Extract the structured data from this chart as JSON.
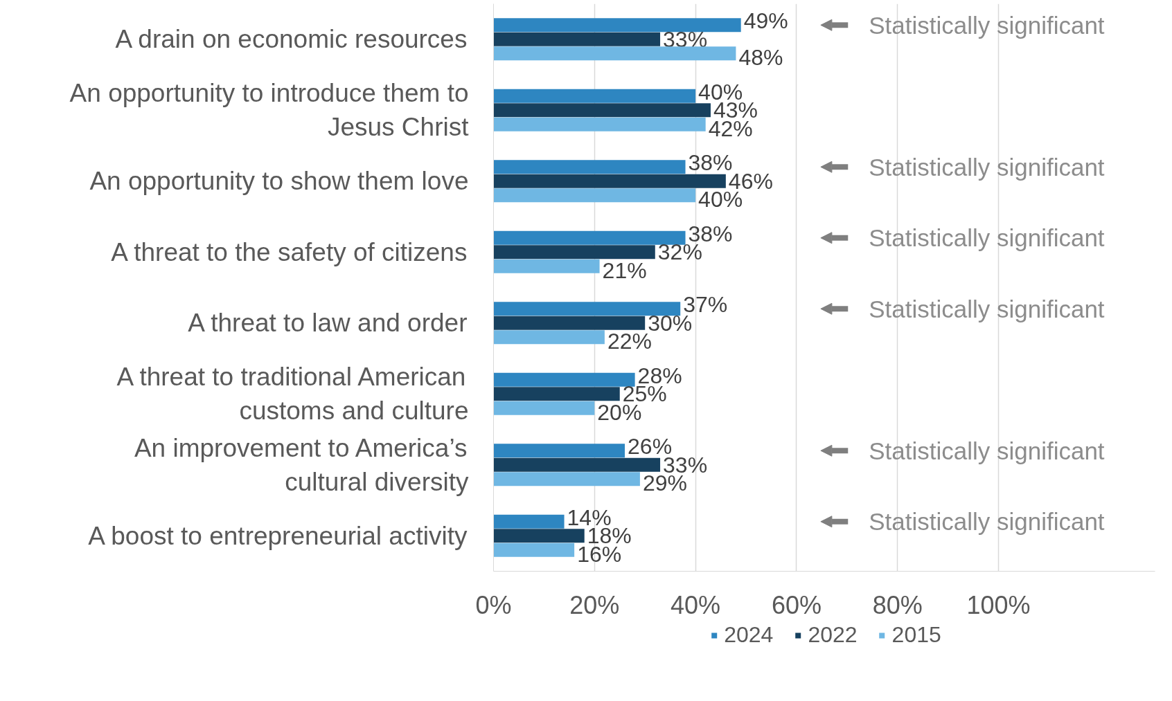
{
  "chart_data": {
    "type": "bar",
    "orientation": "horizontal",
    "categories": [
      "A drain on economic resources",
      "An opportunity to introduce them to\nJesus Christ",
      "An opportunity to show them love",
      "A threat to the safety of citizens",
      "A threat to law and order",
      "A threat to traditional American\ncustoms and culture",
      "An improvement to America’s\ncultural diversity",
      "A boost to entrepreneurial activity"
    ],
    "series": [
      {
        "name": "2024",
        "color": "#2e86c1",
        "values": [
          49,
          40,
          38,
          38,
          37,
          28,
          26,
          14
        ],
        "value_labels": [
          "49%",
          "40%",
          "38%",
          "38%",
          "37%",
          "28%",
          "26%",
          "14%"
        ]
      },
      {
        "name": "2022",
        "color": "#17415f",
        "values": [
          33,
          43,
          46,
          32,
          30,
          25,
          33,
          18
        ],
        "value_labels": [
          "33%",
          "43%",
          "46%",
          "32%",
          "30%",
          "25%",
          "33%",
          "18%"
        ]
      },
      {
        "name": "2015",
        "color": "#6fb7e3",
        "values": [
          48,
          42,
          40,
          21,
          22,
          20,
          29,
          16
        ],
        "value_labels": [
          "48%",
          "42%",
          "40%",
          "21%",
          "22%",
          "20%",
          "29%",
          "16%"
        ]
      }
    ],
    "xlim": [
      0,
      131
    ],
    "xticks": [
      {
        "value": 0,
        "label": "0%"
      },
      {
        "value": 20,
        "label": "20%"
      },
      {
        "value": 40,
        "label": "40%"
      },
      {
        "value": 60,
        "label": "60%"
      },
      {
        "value": 80,
        "label": "80%"
      },
      {
        "value": 100,
        "label": "100%"
      }
    ],
    "grid": "x",
    "legend": "bottom",
    "annotations": [
      "Statistically significant",
      "Statistically significant",
      "Statistically significant",
      "Statistically significant",
      "Statistically significant",
      "Statistically significant"
    ]
  }
}
